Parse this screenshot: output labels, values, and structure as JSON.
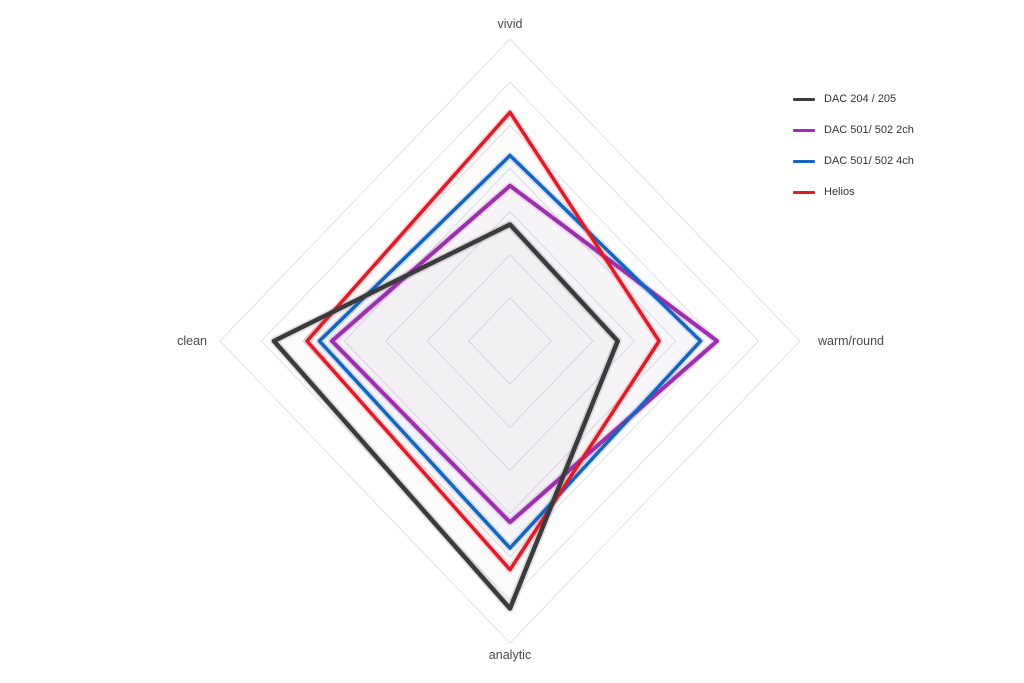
{
  "page": {
    "background": "#ffffff"
  },
  "chart_data": {
    "type": "radar",
    "title": "",
    "axes": [
      "vivid",
      "warm/round",
      "analytic",
      "clean"
    ],
    "max": 7,
    "grid_rings": 7,
    "grid_on": true,
    "grid_color": "#e2e2e7",
    "legend_position": "top-right",
    "series": [
      {
        "name": "DAC 204 / 205",
        "color": "#3b3b3d",
        "stroke_width": 4.5,
        "values": [
          2.7,
          2.6,
          6.2,
          5.7
        ]
      },
      {
        "name": "DAC 501/ 502 2ch",
        "color": "#9b2fae",
        "stroke_width": 4.0,
        "values": [
          3.6,
          5.0,
          4.2,
          4.3
        ]
      },
      {
        "name": "DAC 501/ 502 4ch",
        "color": "#1565c0",
        "stroke_width": 3.5,
        "values": [
          4.3,
          4.6,
          4.8,
          4.6
        ]
      },
      {
        "name": "Helios",
        "color": "#e11a27",
        "stroke_width": 3.5,
        "values": [
          5.3,
          3.6,
          5.3,
          4.9
        ]
      }
    ]
  }
}
